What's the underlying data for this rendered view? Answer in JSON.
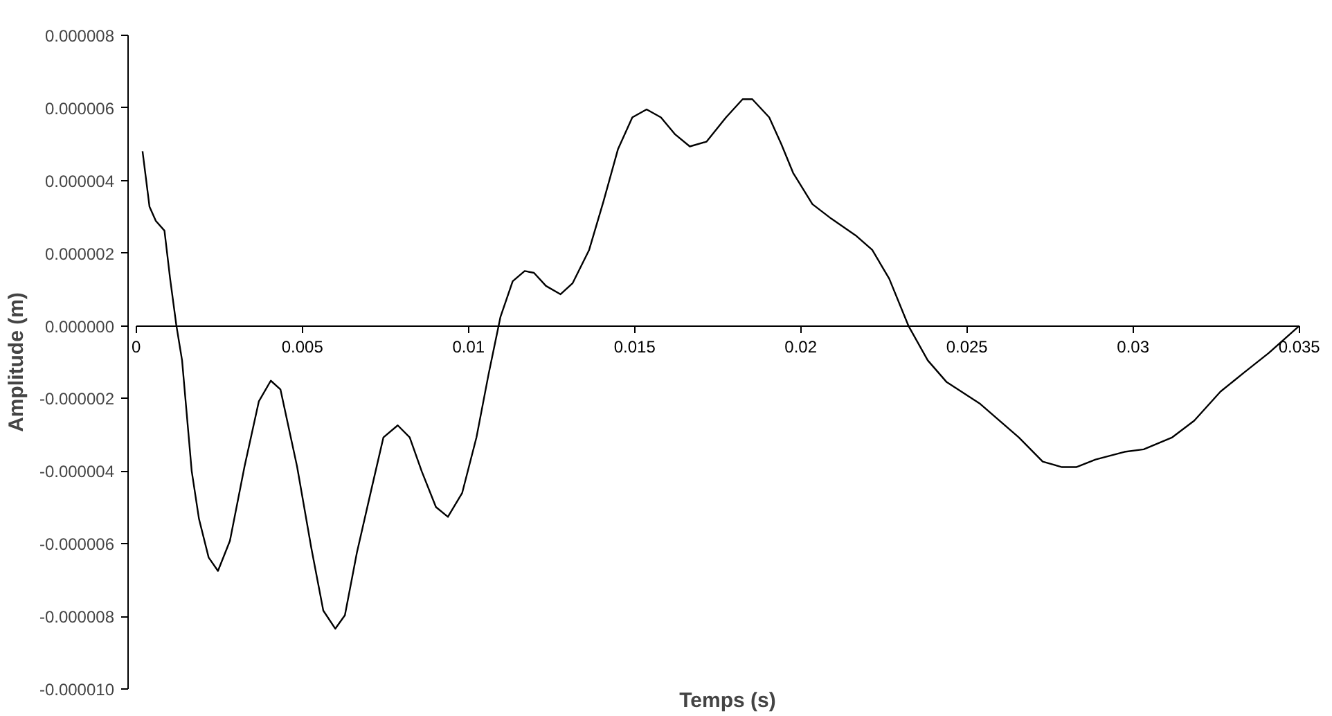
{
  "chart_data": {
    "type": "line",
    "xlabel": "Temps (s)",
    "ylabel": "Amplitude (m)",
    "xlim": [
      0,
      0.035
    ],
    "xticks": [
      0,
      0.005,
      0.01,
      0.015,
      0.02,
      0.025,
      0.03,
      0.035
    ],
    "ylim": [
      -1e-05,
      8e-06
    ],
    "yticks": [
      {
        "value": 8e-06,
        "label": "0.000008"
      },
      {
        "value": 6e-06,
        "label": "0.000006"
      },
      {
        "value": 4e-06,
        "label": "0.000004"
      },
      {
        "value": 2e-06,
        "label": "0.000002"
      },
      {
        "value": 0,
        "label": "0.000000"
      },
      {
        "value": -2e-06,
        "label": "-0.000002"
      },
      {
        "value": -4e-06,
        "label": "-0.000004"
      },
      {
        "value": -6e-06,
        "label": "-0.000006"
      },
      {
        "value": -8e-06,
        "label": "-0.000008"
      },
      {
        "value": -1e-05,
        "label": "-0.000010"
      }
    ],
    "grid": false,
    "marker": "none",
    "line_style": "solid",
    "series": [
      {
        "color": "#000000",
        "x": [
          0.00019,
          0.0004,
          0.00059,
          0.00085,
          0.00102,
          0.00121,
          0.00138,
          0.00167,
          0.00189,
          0.00218,
          0.00246,
          0.00282,
          0.00326,
          0.00369,
          0.00405,
          0.00434,
          0.00484,
          0.00527,
          0.00563,
          0.00599,
          0.00628,
          0.00664,
          0.00707,
          0.00744,
          0.00787,
          0.00823,
          0.00859,
          0.00902,
          0.00938,
          0.00981,
          0.01024,
          0.0106,
          0.01096,
          0.01133,
          0.01169,
          0.01197,
          0.01233,
          0.01277,
          0.01313,
          0.01363,
          0.01406,
          0.0145,
          0.01493,
          0.01536,
          0.01579,
          0.01622,
          0.01666,
          0.01716,
          0.01775,
          0.01825,
          0.01854,
          0.01905,
          0.01941,
          0.01977,
          0.02035,
          0.02092,
          0.02165,
          0.02215,
          0.02266,
          0.02324,
          0.02382,
          0.02439,
          0.0254,
          0.02656,
          0.02728,
          0.02786,
          0.02829,
          0.02887,
          0.02974,
          0.03032,
          0.03118,
          0.03184,
          0.03263,
          0.03335,
          0.03408,
          0.035
        ],
        "values": [
          4.81e-06,
          3.28e-06,
          2.89e-06,
          2.62e-06,
          1.3e-06,
          0,
          -9.5e-07,
          -4e-06,
          -5.32e-06,
          -6.38e-06,
          -6.75e-06,
          -5.92e-06,
          -3.87e-06,
          -2.08e-06,
          -1.51e-06,
          -1.75e-06,
          -3.87e-06,
          -6.12e-06,
          -7.84e-06,
          -8.34e-06,
          -7.97e-06,
          -6.25e-06,
          -4.53e-06,
          -3.07e-06,
          -2.74e-06,
          -3.07e-06,
          -4e-06,
          -4.99e-06,
          -5.26e-06,
          -4.6e-06,
          -3.07e-06,
          -1.35e-06,
          2.4e-07,
          1.23e-06,
          1.51e-06,
          1.46e-06,
          1.1e-06,
          8.7e-07,
          1.17e-06,
          2.09e-06,
          3.42e-06,
          4.87e-06,
          5.74e-06,
          5.96e-06,
          5.74e-06,
          5.27e-06,
          4.94e-06,
          5.07e-06,
          5.74e-06,
          6.24e-06,
          6.24e-06,
          5.74e-06,
          5.01e-06,
          4.21e-06,
          3.35e-06,
          2.95e-06,
          2.49e-06,
          2.09e-06,
          1.3e-06,
          0,
          -9.5e-07,
          -1.55e-06,
          -2.15e-06,
          -3.07e-06,
          -3.74e-06,
          -3.89e-06,
          -3.89e-06,
          -3.68e-06,
          -3.47e-06,
          -3.4e-06,
          -3.07e-06,
          -2.61e-06,
          -1.81e-06,
          -1.28e-06,
          -7.5e-07,
          0
        ]
      }
    ]
  }
}
